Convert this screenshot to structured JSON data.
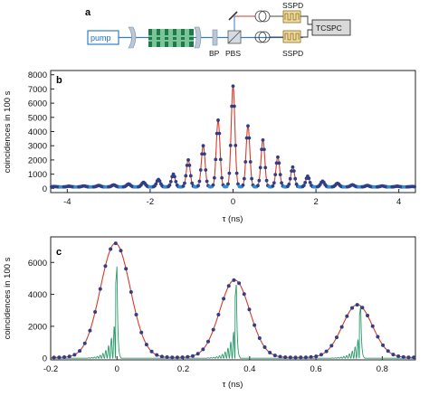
{
  "panel_labels": {
    "a": "a",
    "b": "b",
    "c": "c"
  },
  "setup": {
    "pump_label": "pump",
    "bp_label": "BP",
    "pbs_label": "PBS",
    "sspd_top": "SSPD",
    "sspd_bottom": "SSPD",
    "tcspc_label": "TCSPC",
    "colors": {
      "pump_box": "#2e7fc8",
      "crystal_dark": "#1f7a4a",
      "crystal_light": "#7bc49a",
      "optics": "#b9c7d6",
      "detector": "#c9a24a",
      "tcspc_fill": "#d9d9d9"
    }
  },
  "chart_data": [
    {
      "type": "scatter",
      "panel": "b",
      "xlabel": "τ (ns)",
      "ylabel": "coincidences in 100 s",
      "xlim": [
        -4.4,
        4.4
      ],
      "ylim": [
        -300,
        8300
      ],
      "xticks": [
        -4,
        -2,
        0,
        2,
        4
      ],
      "yticks": [
        0,
        1000,
        2000,
        3000,
        4000,
        5000,
        6000,
        7000,
        8000
      ],
      "peak_spacing_ns": 0.36,
      "baseline": 100,
      "peaks": [
        {
          "x": -4.32,
          "y": 130
        },
        {
          "x": -3.96,
          "y": 150
        },
        {
          "x": -3.6,
          "y": 170
        },
        {
          "x": -3.24,
          "y": 200
        },
        {
          "x": -2.88,
          "y": 240
        },
        {
          "x": -2.52,
          "y": 300
        },
        {
          "x": -2.16,
          "y": 420
        },
        {
          "x": -1.8,
          "y": 620
        },
        {
          "x": -1.44,
          "y": 1000
        },
        {
          "x": -1.08,
          "y": 2000
        },
        {
          "x": -0.72,
          "y": 3000
        },
        {
          "x": -0.36,
          "y": 4800
        },
        {
          "x": 0.0,
          "y": 7200
        },
        {
          "x": 0.36,
          "y": 4400
        },
        {
          "x": 0.72,
          "y": 3400
        },
        {
          "x": 1.08,
          "y": 2200
        },
        {
          "x": 1.44,
          "y": 1500
        },
        {
          "x": 1.8,
          "y": 850
        },
        {
          "x": 2.16,
          "y": 500
        },
        {
          "x": 2.52,
          "y": 350
        },
        {
          "x": 2.88,
          "y": 250
        },
        {
          "x": 3.24,
          "y": 200
        },
        {
          "x": 3.6,
          "y": 170
        },
        {
          "x": 3.96,
          "y": 150
        },
        {
          "x": 4.32,
          "y": 130
        }
      ],
      "peak_width_ns": 0.045,
      "colors": {
        "points": "#2f3f86",
        "fit": "#d93a2a",
        "background_points": "#2f8fd8"
      }
    },
    {
      "type": "scatter",
      "panel": "c",
      "xlabel": "τ (ns)",
      "ylabel": "coincidences in 100 s",
      "xlim": [
        -0.2,
        0.9
      ],
      "ylim": [
        -100,
        7600
      ],
      "xticks": [
        -0.2,
        0,
        0.2,
        0.4,
        0.6,
        0.8
      ],
      "yticks": [
        0,
        2000,
        4000,
        6000
      ],
      "fit_peaks": [
        {
          "x": -0.005,
          "y": 7200,
          "sigma_ns": 0.045
        },
        {
          "x": 0.355,
          "y": 4900,
          "sigma_ns": 0.045
        },
        {
          "x": 0.725,
          "y": 3350,
          "sigma_ns": 0.045
        }
      ],
      "baseline": 50,
      "simulated_peaks": [
        {
          "x": 0.0,
          "y": 5800
        },
        {
          "x": 0.36,
          "y": 4700
        },
        {
          "x": 0.735,
          "y": 3300
        }
      ],
      "colors": {
        "points": "#2f3f86",
        "fit": "#d93a2a",
        "simulation": "#2a9a6a"
      }
    }
  ]
}
